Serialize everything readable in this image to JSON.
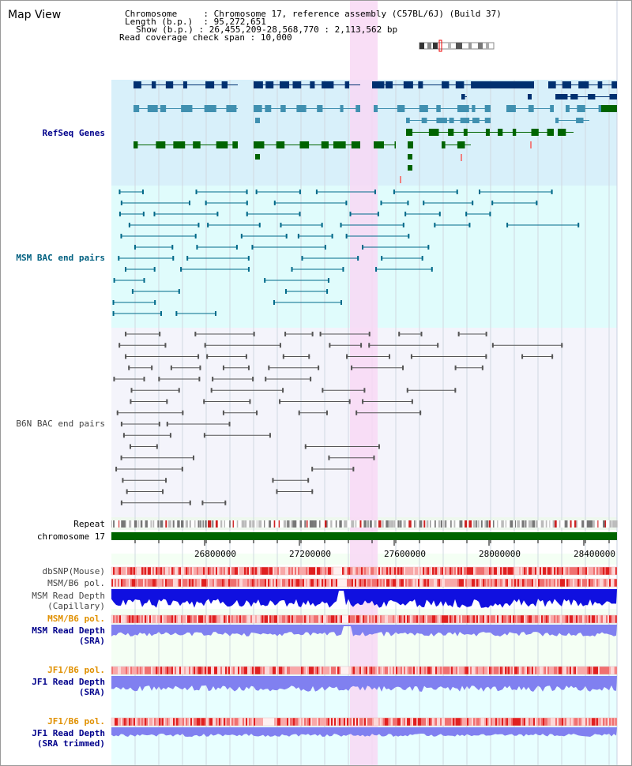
{
  "title": "Map View",
  "info": {
    "chromosome_label": "Chromosome",
    "chromosome_value": "Chromosome 17, reference assembly (C57BL/6J) (Build 37)",
    "length_label": "Length (b.p.)",
    "length_value": "95,272,651",
    "show_label": "Show (b.p.)",
    "show_value": "26,455,209-28,568,770 : 2,113,562 bp",
    "coverage_label": "Read coverage check span",
    "coverage_value": "10,000"
  },
  "tracks": {
    "refseq": "RefSeq Genes",
    "msm_bac": "MSM BAC end pairs",
    "b6n_bac": "B6N BAC end pairs",
    "repeat": "Repeat",
    "chromosome": "chromosome 17",
    "dbsnp": "dbSNP(Mouse)",
    "msm_b6_pol_1": "MSM/B6 pol.",
    "msm_depth_cap": "MSM Read Depth\n(Capillary)",
    "msm_b6_pol_2": "MSM/B6 pol.",
    "msm_depth_sra": "MSM Read Depth\n(SRA)",
    "jf1_b6_pol_1": "JF1/B6 pol.",
    "jf1_depth_sra": "JF1 Read Depth\n(SRA)",
    "jf1_b6_pol_2": "JF1/B6 pol.",
    "jf1_depth_trim": "JF1 Read Depth\n(SRA trimmed)"
  },
  "axis": {
    "ticks": [
      "26800000",
      "27200000",
      "27600000",
      "28000000",
      "28400000"
    ]
  },
  "colors": {
    "refseq_bg": "#d8f0fa",
    "msm_bg": "#e0fcfc",
    "b6n_bg": "#f4f4fb",
    "highlight": "#f8d8f4",
    "gene_dark": "#003070",
    "gene_mid": "#4090b0",
    "gene_green": "#006400",
    "msm_line": "#006a8a",
    "b6n_line": "#555555",
    "chrom_bar": "#006400",
    "depth_cap": "#1010e0",
    "depth_sra": "#8080f0"
  }
}
